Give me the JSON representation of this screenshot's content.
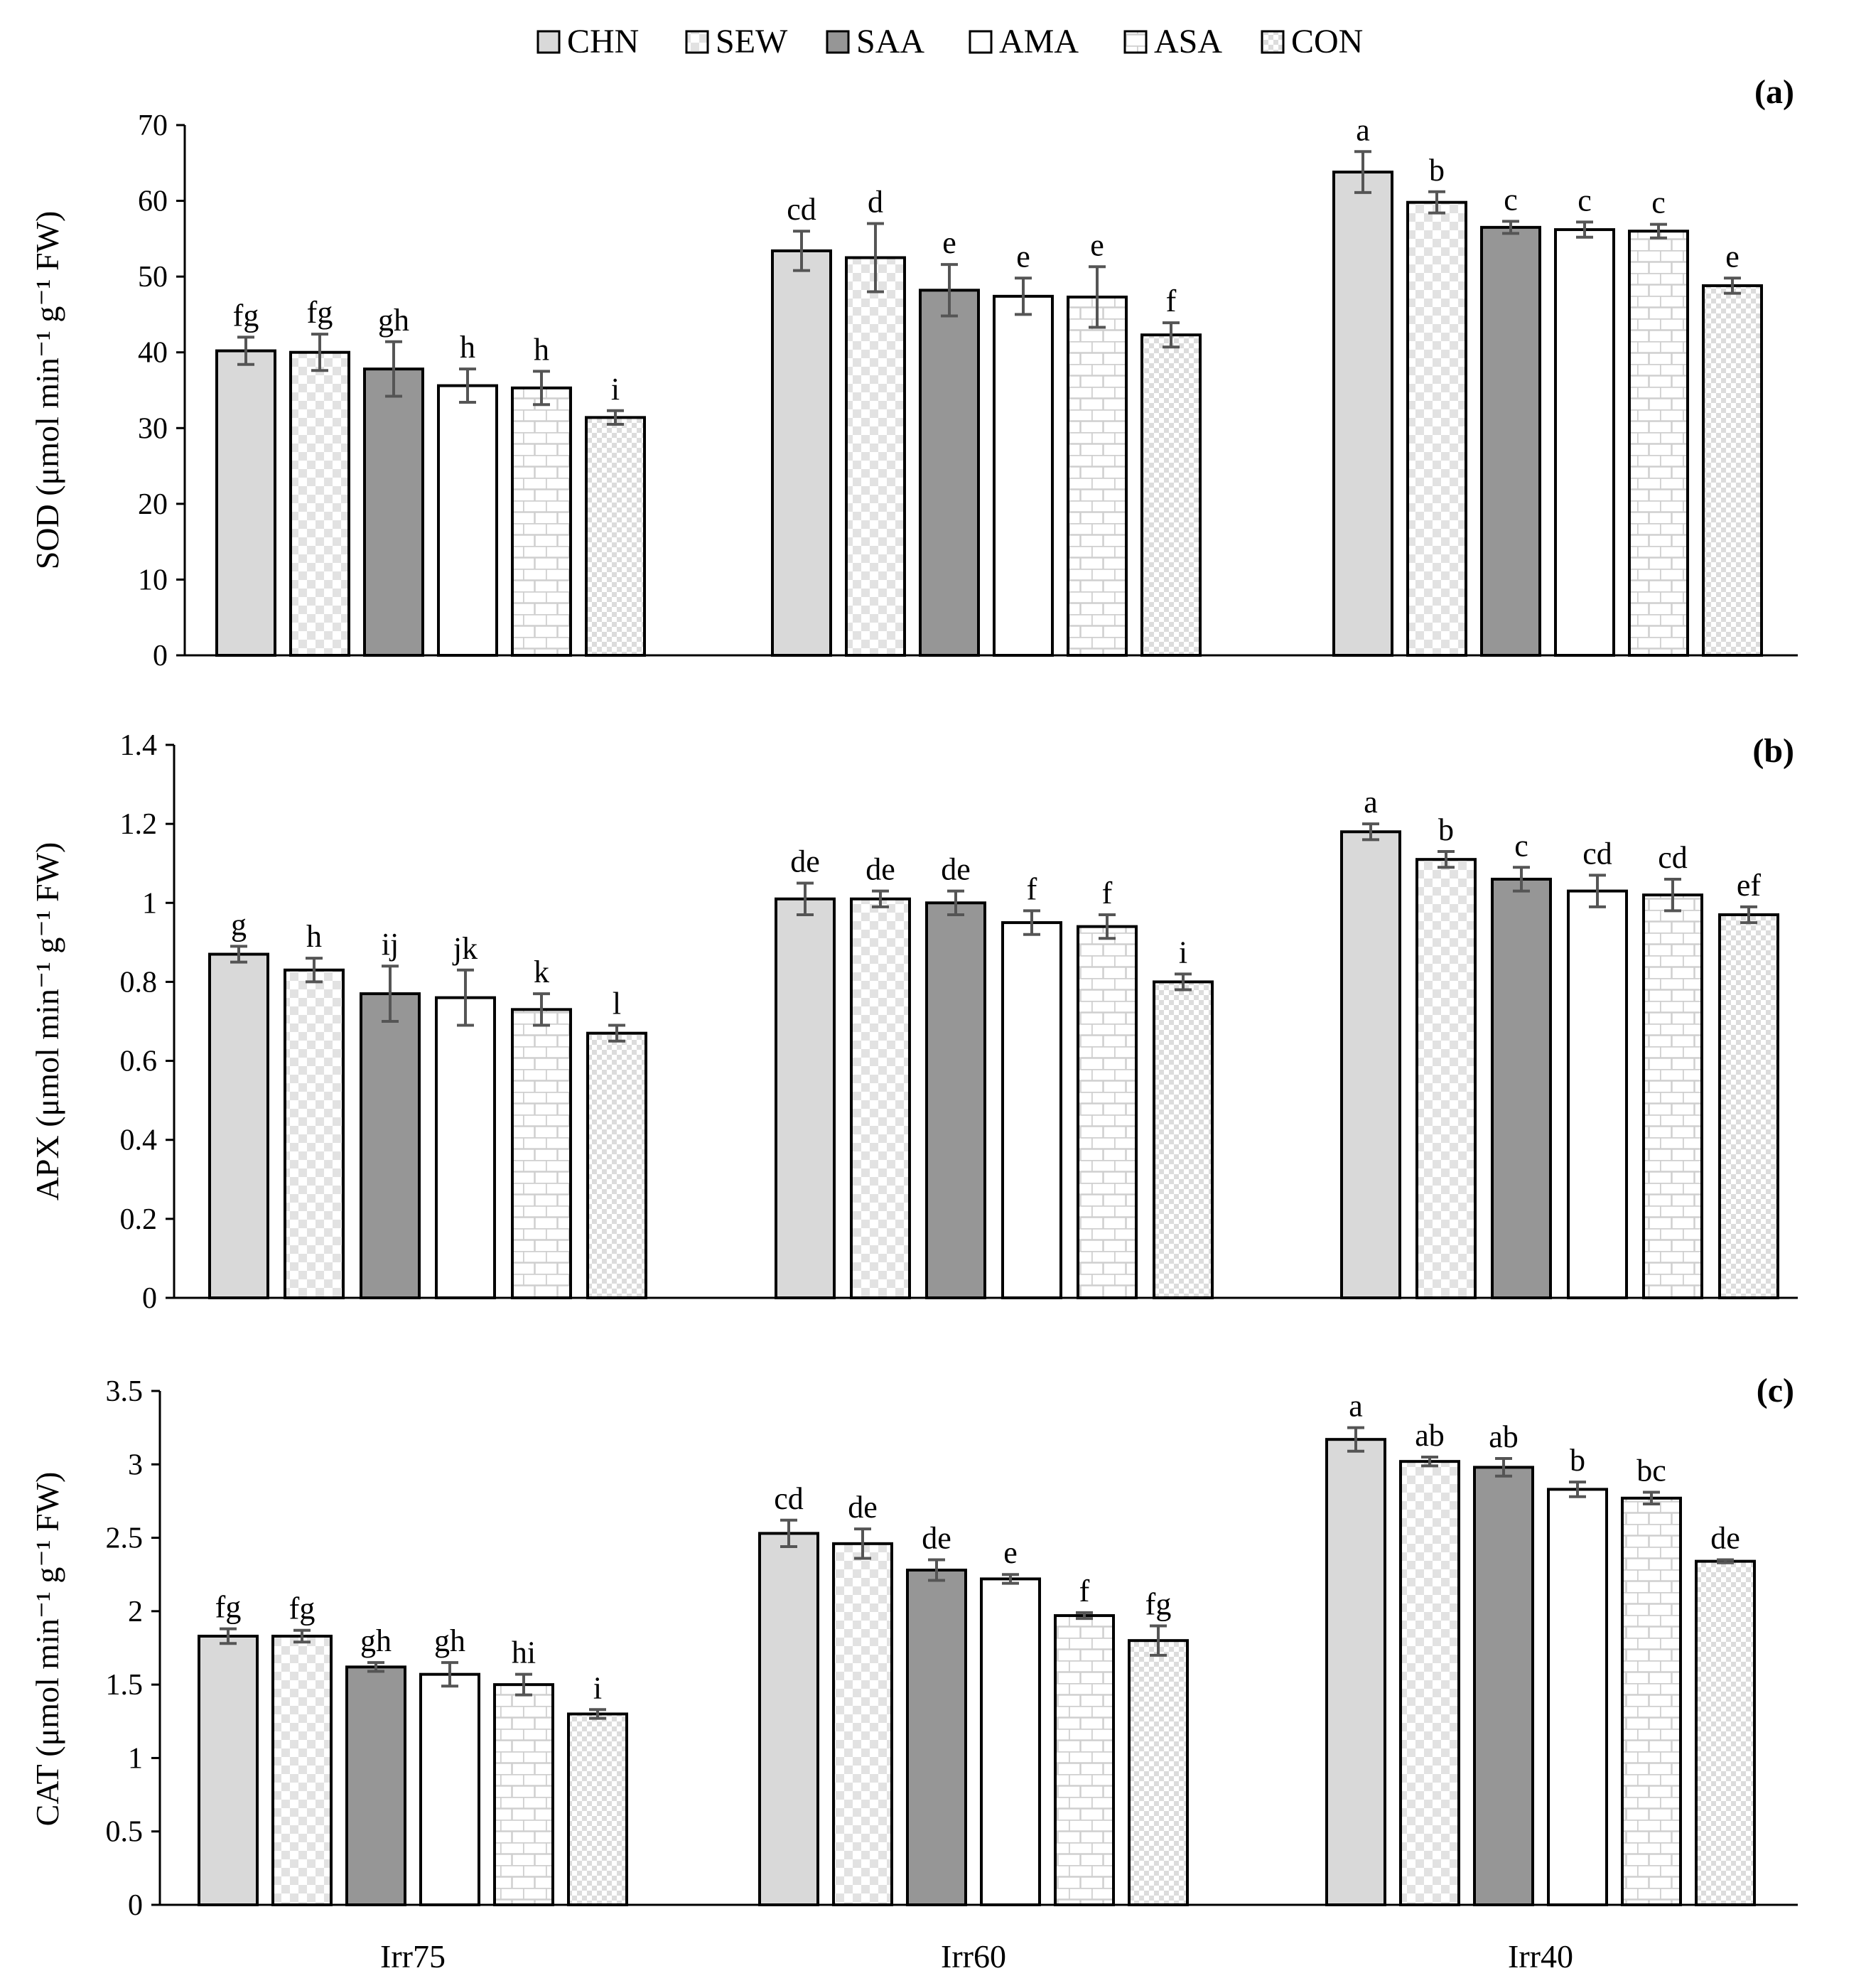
{
  "legend": [
    {
      "label": "CHN",
      "pattern": "solid-light"
    },
    {
      "label": "SEW",
      "pattern": "checker"
    },
    {
      "label": "SAA",
      "pattern": "solid-dark"
    },
    {
      "label": "AMA",
      "pattern": "white"
    },
    {
      "label": "ASA",
      "pattern": "brick"
    },
    {
      "label": "CON",
      "pattern": "dots"
    }
  ],
  "colors": {
    "chn": "#d9d9d9",
    "saa": "#969696",
    "pattern_light": "#e2e2e2",
    "error_bar": "#555555",
    "outline": "#000000"
  },
  "chart_data": [
    {
      "type": "bar",
      "panel_label": "(a)",
      "ylabel": "SOD (μmol min⁻¹ g⁻¹ FW)",
      "ylim": [
        0,
        70
      ],
      "yticks": [
        0,
        10,
        20,
        30,
        40,
        50,
        60,
        70
      ],
      "ytick_labels": [
        "0",
        "10",
        "20",
        "30",
        "40",
        "50",
        "60",
        "70"
      ],
      "categories": [
        "Irr75",
        "Irr60",
        "Irr40"
      ],
      "show_xlabels": false,
      "series": [
        {
          "name": "CHN",
          "values": [
            40.2,
            53.4,
            63.8
          ],
          "errors": [
            1.8,
            2.6,
            2.7
          ],
          "letters": [
            "fg",
            "cd",
            "a"
          ]
        },
        {
          "name": "SEW",
          "values": [
            40.0,
            52.5,
            59.8
          ],
          "errors": [
            2.4,
            4.5,
            1.4
          ],
          "letters": [
            "fg",
            "d",
            "b"
          ]
        },
        {
          "name": "SAA",
          "values": [
            37.8,
            48.2,
            56.5
          ],
          "errors": [
            3.6,
            3.4,
            0.8
          ],
          "letters": [
            "gh",
            "e",
            "c"
          ]
        },
        {
          "name": "AMA",
          "values": [
            35.6,
            47.4,
            56.2
          ],
          "errors": [
            2.2,
            2.4,
            1.0
          ],
          "letters": [
            "h",
            "e",
            "c"
          ]
        },
        {
          "name": "ASA",
          "values": [
            35.3,
            47.3,
            56.0
          ],
          "errors": [
            2.2,
            4.0,
            0.9
          ],
          "letters": [
            "h",
            "e",
            "c"
          ]
        },
        {
          "name": "CON",
          "values": [
            31.4,
            42.3,
            48.8
          ],
          "errors": [
            0.9,
            1.6,
            1.0
          ],
          "letters": [
            "i",
            "f",
            "e"
          ]
        }
      ]
    },
    {
      "type": "bar",
      "panel_label": "(b)",
      "ylabel": "APX (μmol min⁻¹ g⁻¹ FW)",
      "ylim": [
        0,
        1.4
      ],
      "yticks": [
        0,
        0.2,
        0.4,
        0.6,
        0.8,
        1.0,
        1.2,
        1.4
      ],
      "ytick_labels": [
        "0",
        "0.2",
        "0.4",
        "0.6",
        "0.8",
        "1",
        "1.2",
        "1.4"
      ],
      "categories": [
        "Irr75",
        "Irr60",
        "Irr40"
      ],
      "show_xlabels": false,
      "series": [
        {
          "name": "CHN",
          "values": [
            0.87,
            1.01,
            1.18
          ],
          "errors": [
            0.02,
            0.04,
            0.02
          ],
          "letters": [
            "g",
            "de",
            "a"
          ]
        },
        {
          "name": "SEW",
          "values": [
            0.83,
            1.01,
            1.11
          ],
          "errors": [
            0.03,
            0.02,
            0.02
          ],
          "letters": [
            "h",
            "de",
            "b"
          ]
        },
        {
          "name": "SAA",
          "values": [
            0.77,
            1.0,
            1.06
          ],
          "errors": [
            0.07,
            0.03,
            0.03
          ],
          "letters": [
            "ij",
            "de",
            "c"
          ]
        },
        {
          "name": "AMA",
          "values": [
            0.76,
            0.95,
            1.03
          ],
          "errors": [
            0.07,
            0.03,
            0.04
          ],
          "letters": [
            "jk",
            "f",
            "cd"
          ]
        },
        {
          "name": "ASA",
          "values": [
            0.73,
            0.94,
            1.02
          ],
          "errors": [
            0.04,
            0.03,
            0.04
          ],
          "letters": [
            "k",
            "f",
            "cd"
          ]
        },
        {
          "name": "CON",
          "values": [
            0.67,
            0.8,
            0.97
          ],
          "errors": [
            0.02,
            0.02,
            0.02
          ],
          "letters": [
            "l",
            "i",
            "ef"
          ]
        }
      ]
    },
    {
      "type": "bar",
      "panel_label": "(c)",
      "ylabel": "CAT (μmol min⁻¹ g⁻¹ FW)",
      "ylim": [
        0,
        3.5
      ],
      "yticks": [
        0,
        0.5,
        1.0,
        1.5,
        2.0,
        2.5,
        3.0,
        3.5
      ],
      "ytick_labels": [
        "0",
        "0.5",
        "1",
        "1.5",
        "2",
        "2.5",
        "3",
        "3.5"
      ],
      "categories": [
        "Irr75",
        "Irr60",
        "Irr40"
      ],
      "show_xlabels": true,
      "series": [
        {
          "name": "CHN",
          "values": [
            1.83,
            2.53,
            3.17
          ],
          "errors": [
            0.05,
            0.09,
            0.08
          ],
          "letters": [
            "fg",
            "cd",
            "a"
          ]
        },
        {
          "name": "SEW",
          "values": [
            1.83,
            2.46,
            3.02
          ],
          "errors": [
            0.04,
            0.1,
            0.03
          ],
          "letters": [
            "fg",
            "de",
            "ab"
          ]
        },
        {
          "name": "SAA",
          "values": [
            1.62,
            2.28,
            2.98
          ],
          "errors": [
            0.03,
            0.07,
            0.06
          ],
          "letters": [
            "gh",
            "de",
            "ab"
          ]
        },
        {
          "name": "AMA",
          "values": [
            1.57,
            2.22,
            2.83
          ],
          "errors": [
            0.08,
            0.03,
            0.05
          ],
          "letters": [
            "gh",
            "e",
            "b"
          ]
        },
        {
          "name": "ASA",
          "values": [
            1.5,
            1.97,
            2.77
          ],
          "errors": [
            0.07,
            0.02,
            0.04
          ],
          "letters": [
            "hi",
            "f",
            "bc"
          ]
        },
        {
          "name": "CON",
          "values": [
            1.3,
            1.8,
            2.34
          ],
          "errors": [
            0.03,
            0.1,
            0.01
          ],
          "letters": [
            "i",
            "fg",
            "de"
          ]
        }
      ]
    }
  ]
}
